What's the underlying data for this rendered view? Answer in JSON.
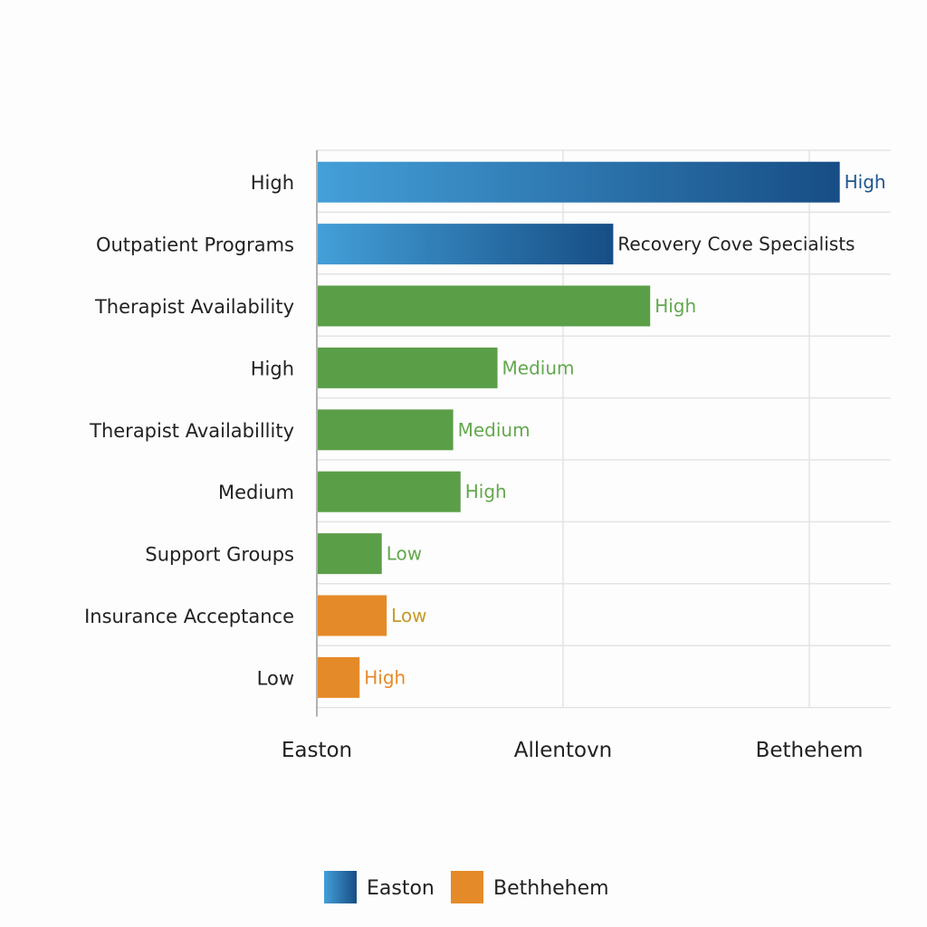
{
  "chart_data": {
    "type": "bar",
    "orientation": "horizontal",
    "title": "",
    "xlabel": "",
    "ylabel": "",
    "x_ticks": [
      "Easton",
      "Allentovn",
      "Bethehem"
    ],
    "xlim": [
      0,
      2.33
    ],
    "grid": true,
    "legend_position": "bottom",
    "categories": [
      "High",
      "Outpatient Programs",
      "Therapist Availability",
      "High",
      "Therapist Availabillity",
      "Medium",
      "Support Groups",
      "Insurance Acceptance",
      "Low"
    ],
    "values": [
      2.12,
      1.2,
      1.35,
      0.73,
      0.55,
      0.58,
      0.26,
      0.28,
      0.17
    ],
    "bar_labels": [
      "High",
      "Recovery Cove Specialists",
      "High",
      "Medium",
      "Medium",
      "High",
      "Low",
      "Low",
      "High"
    ],
    "bar_colors": [
      "blue-gradient",
      "blue-gradient",
      "#5b9e48",
      "#5b9e48",
      "#5b9e48",
      "#5b9e48",
      "#5b9e48",
      "#e58a28",
      "#e58a28"
    ],
    "label_colors": [
      "#1d5590",
      "#222222",
      "#63a84e",
      "#63a84e",
      "#63a84e",
      "#63a84e",
      "#63a84e",
      "#c49a2a",
      "#e58a28"
    ],
    "legend": [
      {
        "name": "Easton",
        "color": "blue-gradient"
      },
      {
        "name": "Bethhehem",
        "color": "#e58a28"
      }
    ],
    "colors": {
      "blue_start": "#449fd8",
      "blue_end": "#174d85",
      "green": "#5b9e48",
      "orange": "#e58a28"
    }
  }
}
